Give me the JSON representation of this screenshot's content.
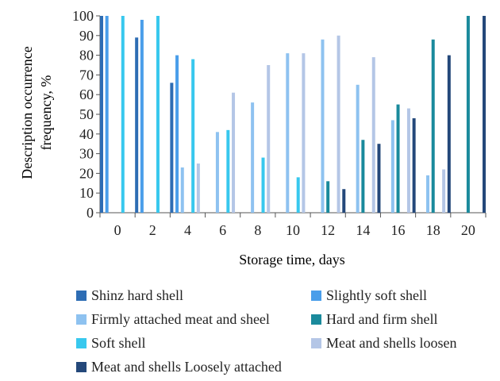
{
  "chart_data": {
    "type": "bar",
    "xlabel": "Storage time, days",
    "ylabel": "Description occurrence frequency, %",
    "ylim": [
      0,
      100
    ],
    "yticks": [
      0,
      10,
      20,
      30,
      40,
      50,
      60,
      70,
      80,
      90,
      100
    ],
    "categories": [
      "0",
      "2",
      "4",
      "6",
      "8",
      "10",
      "12",
      "14",
      "16",
      "18",
      "20"
    ],
    "grid": false,
    "legend_position": "bottom",
    "series": [
      {
        "name": "Shinz hard shell",
        "color": "#2e6db4",
        "values": [
          100,
          89,
          66,
          0,
          0,
          0,
          0,
          0,
          0,
          0,
          0
        ]
      },
      {
        "name": "Slightly soft shell",
        "color": "#4a9eea",
        "values": [
          100,
          98,
          80,
          0,
          0,
          0,
          0,
          0,
          0,
          0,
          0
        ]
      },
      {
        "name": "Firmly attached meat and sheel",
        "color": "#8ec2f0",
        "values": [
          0,
          0,
          23,
          41,
          56,
          81,
          88,
          65,
          47,
          19,
          0
        ]
      },
      {
        "name": "Hard and firm shell",
        "color": "#1a8a9c",
        "values": [
          0,
          0,
          0,
          0,
          0,
          0,
          16,
          37,
          55,
          88,
          100
        ]
      },
      {
        "name": "Soft shell",
        "color": "#38c8ee",
        "values": [
          100,
          100,
          78,
          42,
          28,
          18,
          0,
          0,
          0,
          0,
          0
        ]
      },
      {
        "name": "Meat and shells loosen",
        "color": "#b4c6e6",
        "values": [
          0,
          0,
          25,
          61,
          75,
          81,
          90,
          79,
          53,
          22,
          0
        ]
      },
      {
        "name": "Meat and shells Loosely attached",
        "color": "#24487a",
        "values": [
          0,
          0,
          0,
          0,
          0,
          0,
          12,
          35,
          48,
          80,
          100
        ]
      }
    ]
  }
}
